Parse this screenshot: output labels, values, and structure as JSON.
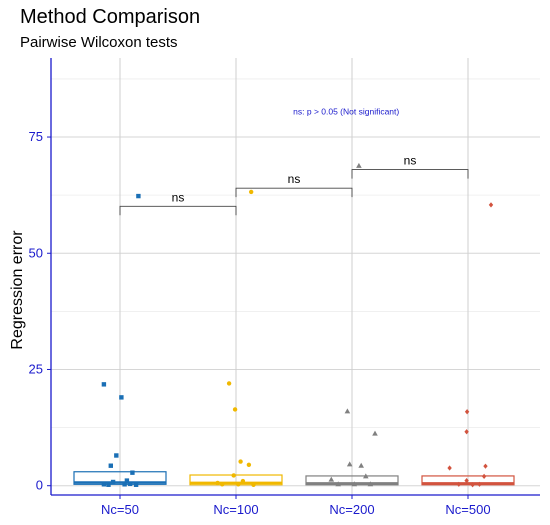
{
  "chart_data": {
    "type": "box",
    "title": "Method Comparison",
    "subtitle": "Pairwise Wilcoxon tests",
    "xlabel": "",
    "ylabel": "Regression error",
    "categories": [
      "Nc=50",
      "Nc=100",
      "Nc=200",
      "Nc=500"
    ],
    "ylim": [
      -2,
      92
    ],
    "yticks": [
      0,
      25,
      50,
      75
    ],
    "grid": true,
    "colors": [
      "#1a6fb5",
      "#f0b800",
      "#808080",
      "#d2533e"
    ],
    "markers": [
      "square",
      "circle",
      "triangle",
      "diamond"
    ],
    "boxes": [
      {
        "q1": 0.3,
        "median": 0.7,
        "q3": 3.0
      },
      {
        "q1": 0.2,
        "median": 0.6,
        "q3": 2.3
      },
      {
        "q1": 0.2,
        "median": 0.5,
        "q3": 2.1
      },
      {
        "q1": 0.2,
        "median": 0.5,
        "q3": 2.1
      }
    ],
    "points": [
      {
        "group": 0,
        "jitter": -0.35,
        "y": 21.8
      },
      {
        "group": 0,
        "jitter": 0.03,
        "y": 19.0
      },
      {
        "group": 0,
        "jitter": -0.08,
        "y": 6.5
      },
      {
        "group": 0,
        "jitter": -0.2,
        "y": 4.3
      },
      {
        "group": 0,
        "jitter": 0.27,
        "y": 2.8
      },
      {
        "group": 0,
        "jitter": 0.15,
        "y": 1.1
      },
      {
        "group": 0,
        "jitter": -0.15,
        "y": 0.8
      },
      {
        "group": 0,
        "jitter": -0.35,
        "y": 0.3
      },
      {
        "group": 0,
        "jitter": -0.25,
        "y": 0.2
      },
      {
        "group": 0,
        "jitter": 0.1,
        "y": 0.3
      },
      {
        "group": 0,
        "jitter": 0.22,
        "y": 0.4
      },
      {
        "group": 0,
        "jitter": 0.35,
        "y": 0.2
      },
      {
        "group": 0,
        "jitter": 0.4,
        "y": 62.3
      },
      {
        "group": 1,
        "jitter": 0.33,
        "y": 63.2
      },
      {
        "group": 1,
        "jitter": -0.15,
        "y": 22.0
      },
      {
        "group": 1,
        "jitter": -0.02,
        "y": 16.4
      },
      {
        "group": 1,
        "jitter": 0.1,
        "y": 5.2
      },
      {
        "group": 1,
        "jitter": 0.28,
        "y": 4.5
      },
      {
        "group": 1,
        "jitter": -0.05,
        "y": 2.2
      },
      {
        "group": 1,
        "jitter": 0.15,
        "y": 1.0
      },
      {
        "group": 1,
        "jitter": -0.4,
        "y": 0.6
      },
      {
        "group": 1,
        "jitter": -0.3,
        "y": 0.3
      },
      {
        "group": 1,
        "jitter": 0.05,
        "y": 0.3
      },
      {
        "group": 1,
        "jitter": 0.38,
        "y": 0.2
      },
      {
        "group": 2,
        "jitter": 0.15,
        "y": 68.8
      },
      {
        "group": 2,
        "jitter": -0.1,
        "y": 16.0
      },
      {
        "group": 2,
        "jitter": 0.5,
        "y": 11.2
      },
      {
        "group": 2,
        "jitter": -0.05,
        "y": 4.6
      },
      {
        "group": 2,
        "jitter": 0.2,
        "y": 4.3
      },
      {
        "group": 2,
        "jitter": 0.3,
        "y": 2.0
      },
      {
        "group": 2,
        "jitter": -0.45,
        "y": 1.3
      },
      {
        "group": 2,
        "jitter": -0.3,
        "y": 0.3
      },
      {
        "group": 2,
        "jitter": 0.05,
        "y": 0.3
      },
      {
        "group": 2,
        "jitter": 0.4,
        "y": 0.3
      },
      {
        "group": 3,
        "jitter": 0.5,
        "y": 60.4
      },
      {
        "group": 3,
        "jitter": -0.02,
        "y": 15.9
      },
      {
        "group": 3,
        "jitter": -0.03,
        "y": 11.6
      },
      {
        "group": 3,
        "jitter": 0.38,
        "y": 4.2
      },
      {
        "group": 3,
        "jitter": -0.4,
        "y": 3.8
      },
      {
        "group": 3,
        "jitter": 0.35,
        "y": 2.0
      },
      {
        "group": 3,
        "jitter": -0.03,
        "y": 1.1
      },
      {
        "group": 3,
        "jitter": -0.2,
        "y": 0.3
      },
      {
        "group": 3,
        "jitter": 0.1,
        "y": 0.2
      },
      {
        "group": 3,
        "jitter": 0.25,
        "y": 0.3
      }
    ],
    "comparisons": [
      {
        "from": 0,
        "to": 1,
        "y": 60.1,
        "label": "ns"
      },
      {
        "from": 1,
        "to": 2,
        "y": 64.0,
        "label": "ns"
      },
      {
        "from": 2,
        "to": 3,
        "y": 68.0,
        "label": "ns"
      }
    ],
    "note": "ns: p > 0.05 (Not significant)",
    "note_position": [
      2.95,
      80.5
    ]
  }
}
